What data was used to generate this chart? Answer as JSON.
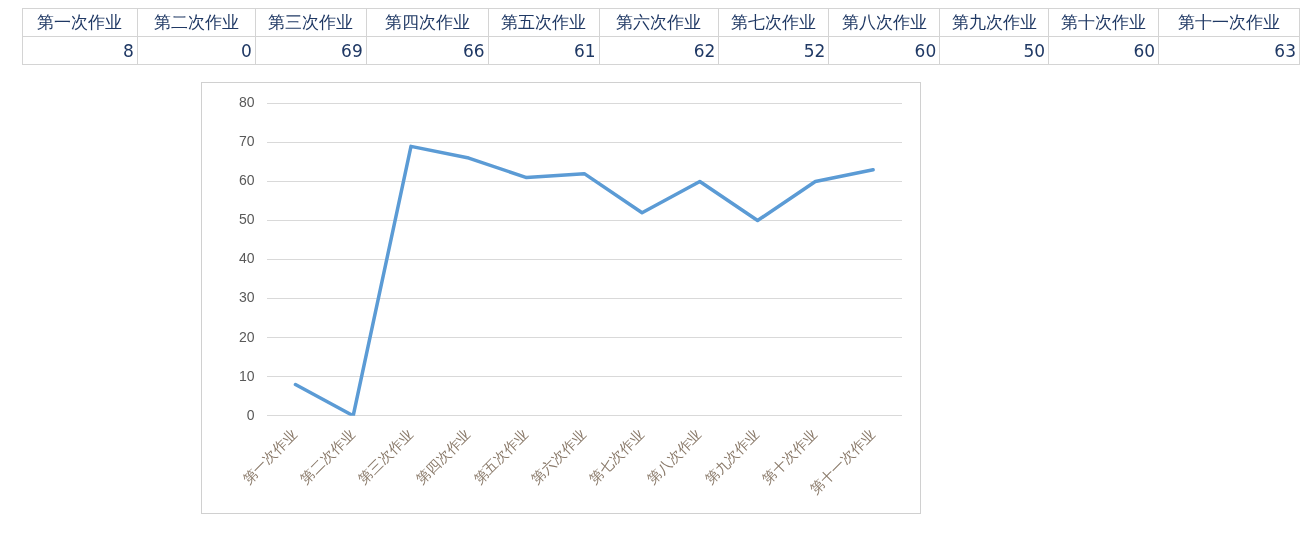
{
  "chart_data": [
    {
      "type": "other",
      "categories": [
        "第一次作业",
        "第二次作业",
        "第三次作业",
        "第四次作业",
        "第五次作业",
        "第六次作业",
        "第七次作业",
        "第八次作业",
        "第九次作业",
        "第十次作业",
        "第十一次作业"
      ],
      "values": [
        8,
        0,
        69,
        66,
        61,
        62,
        52,
        60,
        50,
        60,
        63
      ],
      "data_labels": true
    },
    {
      "type": "line",
      "categories": [
        "第一次作业",
        "第二次作业",
        "第三次作业",
        "第四次作业",
        "第五次作业",
        "第六次作业",
        "第七次作业",
        "第八次作业",
        "第九次作业",
        "第十次作业",
        "第十一次作业"
      ],
      "values": [
        8,
        0,
        69,
        66,
        61,
        62,
        52,
        60,
        50,
        60,
        63
      ],
      "color": "#5b9bd5",
      "ylim": [
        0,
        80
      ],
      "yticks": [
        0,
        10,
        20,
        30,
        40,
        50,
        60,
        70,
        80
      ],
      "grid": "y",
      "legend": false,
      "marker": "none",
      "line_style": "solid"
    }
  ]
}
